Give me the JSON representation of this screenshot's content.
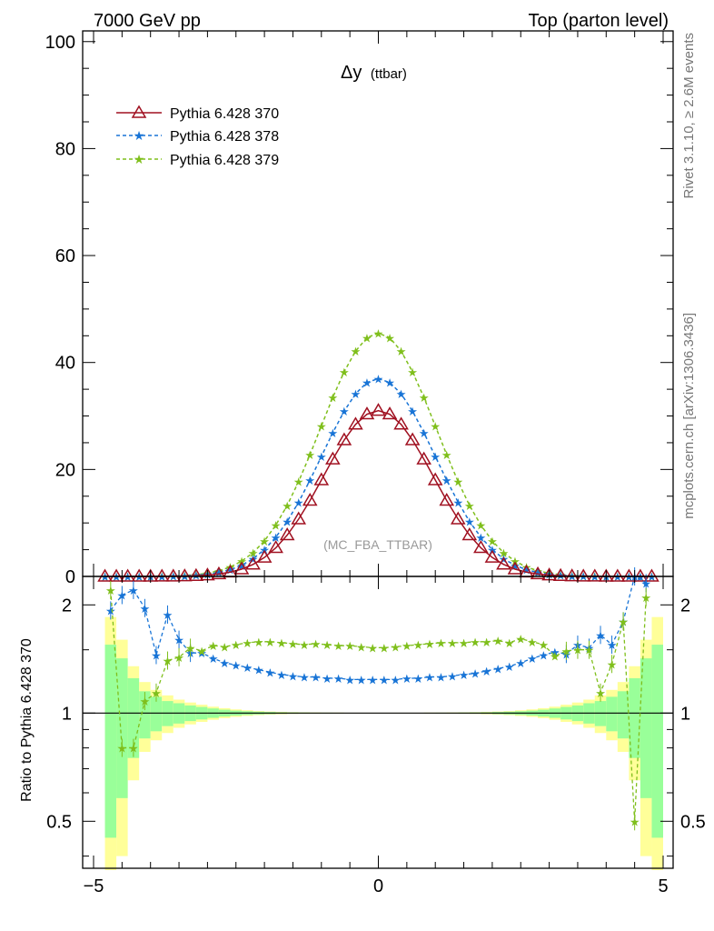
{
  "header": {
    "left": "7000 GeV pp",
    "right": "Top (parton level)"
  },
  "side_labels": {
    "rivet": "Rivet 3.1.10, ≥ 2.6M events",
    "mcplots": "mcplots.cern.ch [arXiv:1306.3436]"
  },
  "chart_data": [
    {
      "type": "line",
      "title_main": "Δy",
      "title_sub": "(ttbar)",
      "watermark": "(MC_FBA_TTBAR)",
      "xlim": [
        -5,
        5
      ],
      "ylim": [
        0,
        102
      ],
      "yticks": [
        0,
        20,
        40,
        60,
        80,
        100
      ],
      "ytick_labels": [
        "0",
        "20",
        "40",
        "60",
        "80",
        "100"
      ],
      "legend_position": "top-left",
      "series": [
        {
          "name": "Pythia 6.428 370",
          "color": "#a01020",
          "marker": "triangle-open",
          "line": "solid",
          "sigma": 0.96,
          "peak": 31.0,
          "x": [
            -4.8,
            -4.6,
            -4.4,
            -4.2,
            -4.0,
            -3.8,
            -3.6,
            -3.4,
            -3.2,
            -3.0,
            -2.8,
            -2.6,
            -2.4,
            -2.2,
            -2.0,
            -1.8,
            -1.6,
            -1.4,
            -1.2,
            -1.0,
            -0.8,
            -0.6,
            -0.4,
            -0.2,
            0.0,
            0.2,
            0.4,
            0.6,
            0.8,
            1.0,
            1.2,
            1.4,
            1.6,
            1.8,
            2.0,
            2.2,
            2.4,
            2.6,
            2.8,
            3.0,
            3.2,
            3.4,
            3.6,
            3.8,
            4.0,
            4.2,
            4.4,
            4.6,
            4.8
          ]
        },
        {
          "name": "Pythia 6.428 378",
          "color": "#1874d6",
          "marker": "star",
          "line": "dashed",
          "sigma": 1.0,
          "peak": 37.0
        },
        {
          "name": "Pythia 6.428 379",
          "color": "#7fbf1c",
          "marker": "star",
          "line": "dashed",
          "sigma": 1.02,
          "peak": 45.5
        }
      ]
    },
    {
      "type": "line",
      "ylabel": "Ratio to Pythia 6.428 370",
      "xlim": [
        -5,
        5
      ],
      "ylim_log": [
        0.37,
        2.4
      ],
      "yticks": [
        0.5,
        1,
        2
      ],
      "ytick_labels": [
        "0.5",
        "1",
        "2"
      ],
      "xticks": [
        -5,
        0,
        5
      ],
      "xtick_labels": [
        "−5",
        "0",
        "5"
      ],
      "bands": {
        "inner_color": "#99ff99",
        "outer_color": "#ffff99",
        "x_edges": [
          -4.8,
          -4.6,
          -4.4,
          -4.2,
          -4.0,
          -3.8,
          -3.6,
          -3.4,
          -3.2,
          -3.0,
          -2.8,
          -2.6,
          -2.4,
          -2.2,
          -2.0,
          -1.8,
          -1.6,
          -1.4,
          -1.2,
          -1.0,
          -0.8,
          -0.6,
          -0.4,
          -0.2,
          0.0,
          0.2,
          0.4,
          0.6,
          0.8,
          1.0,
          1.2,
          1.4,
          1.6,
          1.8,
          2.0,
          2.2,
          2.4,
          2.6,
          2.8,
          3.0,
          3.2,
          3.4,
          3.6,
          3.8,
          4.0,
          4.2,
          4.4,
          4.6,
          4.8,
          5.0
        ],
        "inner_halfwidth": [
          0.55,
          0.42,
          0.25,
          0.15,
          0.11,
          0.08,
          0.065,
          0.05,
          0.04,
          0.03,
          0.022,
          0.016,
          0.012,
          0.009,
          0.007,
          0.005,
          0.004,
          0.003,
          0.002,
          0.002,
          0.0015,
          0.001,
          0.001,
          0.001,
          0.001,
          0.001,
          0.001,
          0.001,
          0.0015,
          0.002,
          0.002,
          0.003,
          0.004,
          0.005,
          0.007,
          0.009,
          0.012,
          0.016,
          0.022,
          0.03,
          0.04,
          0.05,
          0.065,
          0.08,
          0.11,
          0.15,
          0.25,
          0.42,
          0.55
        ],
        "outer_halfwidth": [
          0.85,
          0.6,
          0.35,
          0.22,
          0.16,
          0.12,
          0.09,
          0.07,
          0.055,
          0.042,
          0.032,
          0.024,
          0.018,
          0.013,
          0.01,
          0.008,
          0.006,
          0.005,
          0.004,
          0.003,
          0.003,
          0.002,
          0.002,
          0.002,
          0.002,
          0.002,
          0.002,
          0.002,
          0.003,
          0.003,
          0.004,
          0.005,
          0.006,
          0.008,
          0.01,
          0.013,
          0.018,
          0.024,
          0.032,
          0.042,
          0.055,
          0.07,
          0.09,
          0.12,
          0.16,
          0.22,
          0.35,
          0.6,
          0.85
        ]
      },
      "series": [
        {
          "name": "Pythia 6.428 378",
          "color": "#1874d6",
          "x": [
            -4.7,
            -4.5,
            -4.3,
            -4.1,
            -3.9,
            -3.7,
            -3.5,
            -3.3,
            -3.1,
            -2.9,
            -2.7,
            -2.5,
            -2.3,
            -2.1,
            -1.9,
            -1.7,
            -1.5,
            -1.3,
            -1.1,
            -0.9,
            -0.7,
            -0.5,
            -0.3,
            -0.1,
            0.1,
            0.3,
            0.5,
            0.7,
            0.9,
            1.1,
            1.3,
            1.5,
            1.7,
            1.9,
            2.1,
            2.3,
            2.5,
            2.7,
            2.9,
            3.1,
            3.3,
            3.5,
            3.7,
            3.9,
            4.1,
            4.3,
            4.5,
            4.7
          ],
          "values": [
            1.93,
            2.13,
            2.2,
            1.96,
            1.45,
            1.88,
            1.6,
            1.47,
            1.47,
            1.42,
            1.38,
            1.36,
            1.34,
            1.32,
            1.3,
            1.28,
            1.27,
            1.26,
            1.26,
            1.25,
            1.25,
            1.24,
            1.24,
            1.24,
            1.24,
            1.24,
            1.25,
            1.25,
            1.26,
            1.26,
            1.27,
            1.28,
            1.29,
            1.31,
            1.33,
            1.35,
            1.38,
            1.42,
            1.45,
            1.48,
            1.46,
            1.55,
            1.52,
            1.65,
            1.55,
            1.8,
            2.4,
            2.3
          ]
        },
        {
          "name": "Pythia 6.428 379",
          "color": "#7fbf1c",
          "x": [
            -4.7,
            -4.5,
            -4.3,
            -4.1,
            -3.9,
            -3.7,
            -3.5,
            -3.3,
            -3.1,
            -2.9,
            -2.7,
            -2.5,
            -2.3,
            -2.1,
            -1.9,
            -1.7,
            -1.5,
            -1.3,
            -1.1,
            -0.9,
            -0.7,
            -0.5,
            -0.3,
            -0.1,
            0.1,
            0.3,
            0.5,
            0.7,
            0.9,
            1.1,
            1.3,
            1.5,
            1.7,
            1.9,
            2.1,
            2.3,
            2.5,
            2.7,
            2.9,
            3.1,
            3.3,
            3.5,
            3.7,
            3.9,
            4.1,
            4.3,
            4.5,
            4.7
          ],
          "values": [
            2.2,
            0.8,
            0.8,
            1.08,
            1.14,
            1.4,
            1.43,
            1.52,
            1.49,
            1.54,
            1.53,
            1.55,
            1.57,
            1.58,
            1.58,
            1.57,
            1.56,
            1.55,
            1.56,
            1.55,
            1.54,
            1.54,
            1.53,
            1.52,
            1.52,
            1.53,
            1.54,
            1.55,
            1.56,
            1.57,
            1.57,
            1.57,
            1.58,
            1.58,
            1.59,
            1.57,
            1.61,
            1.58,
            1.55,
            1.44,
            1.49,
            1.5,
            1.5,
            1.14,
            1.37,
            1.8,
            0.5,
            2.1
          ]
        }
      ]
    }
  ]
}
